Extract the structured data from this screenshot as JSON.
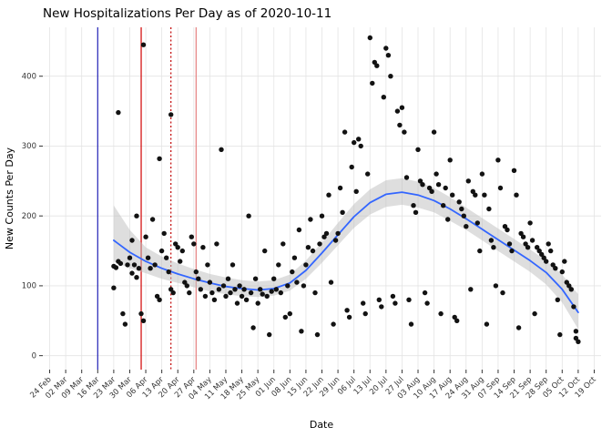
{
  "chart_data": {
    "type": "scatter",
    "title": "New Hospitalizations Per Day as of 2020-10-11",
    "xlabel": "Date",
    "ylabel": "New Counts Per Day",
    "x_tick_labels": [
      "24 Feb",
      "02 Mar",
      "09 Mar",
      "16 Mar",
      "23 Mar",
      "30 Mar",
      "06 Apr",
      "13 Apr",
      "20 Apr",
      "27 Apr",
      "04 May",
      "11 May",
      "18 May",
      "25 May",
      "01 Jun",
      "08 Jun",
      "15 Jun",
      "22 Jun",
      "29 Jun",
      "06 Jul",
      "13 Jul",
      "20 Jul",
      "27 Jul",
      "03 Aug",
      "10 Aug",
      "17 Aug",
      "24 Aug",
      "31 Aug",
      "07 Sep",
      "14 Sep",
      "21 Sep",
      "28 Sep",
      "05 Oct",
      "12 Oct",
      "19 Oct"
    ],
    "x_start_date": "2020-02-24",
    "x_tick_step_days": 7,
    "y_ticks": [
      0,
      100,
      200,
      300,
      400
    ],
    "ylim": [
      -20,
      470
    ],
    "grid": "on",
    "legend": "none",
    "colors": {
      "point": "#121212",
      "smooth_line": "#3366FF",
      "ribbon": "#BEBEBE",
      "grid": "#E4E4E4",
      "axis_text": "#333333",
      "title": "#000000"
    },
    "vlines": [
      {
        "date": "2020-03-16",
        "color": "#2222B8",
        "style": "solid"
      },
      {
        "date": "2020-04-04",
        "color": "#D10000",
        "style": "solid"
      },
      {
        "date": "2020-04-17",
        "color": "#C00000",
        "style": "dotted"
      },
      {
        "date": "2020-04-28",
        "color": "#E57F7F",
        "style": "solid"
      }
    ],
    "smooth": [
      [
        "2020-03-23",
        165,
        135,
        215
      ],
      [
        "2020-03-30",
        148,
        125,
        180
      ],
      [
        "2020-04-06",
        135,
        118,
        155
      ],
      [
        "2020-04-13",
        125,
        110,
        142
      ],
      [
        "2020-04-20",
        117,
        104,
        132
      ],
      [
        "2020-04-27",
        110,
        98,
        124
      ],
      [
        "2020-05-04",
        104,
        92,
        117
      ],
      [
        "2020-05-11",
        99,
        88,
        112
      ],
      [
        "2020-05-18",
        96,
        85,
        108
      ],
      [
        "2020-05-25",
        94,
        84,
        106
      ],
      [
        "2020-06-01",
        96,
        86,
        108
      ],
      [
        "2020-06-08",
        104,
        93,
        116
      ],
      [
        "2020-06-15",
        122,
        110,
        136
      ],
      [
        "2020-06-22",
        147,
        133,
        162
      ],
      [
        "2020-06-29",
        173,
        158,
        190
      ],
      [
        "2020-07-06",
        199,
        183,
        217
      ],
      [
        "2020-07-13",
        219,
        202,
        238
      ],
      [
        "2020-07-20",
        231,
        213,
        251
      ],
      [
        "2020-07-27",
        234,
        216,
        254
      ],
      [
        "2020-08-03",
        230,
        212,
        249
      ],
      [
        "2020-08-10",
        222,
        205,
        240
      ],
      [
        "2020-08-17",
        210,
        193,
        227
      ],
      [
        "2020-08-24",
        196,
        180,
        212
      ],
      [
        "2020-08-31",
        181,
        165,
        197
      ],
      [
        "2020-09-07",
        166,
        150,
        182
      ],
      [
        "2020-09-14",
        151,
        135,
        167
      ],
      [
        "2020-09-21",
        136,
        120,
        152
      ],
      [
        "2020-09-28",
        119,
        102,
        136
      ],
      [
        "2020-10-05",
        95,
        76,
        116
      ],
      [
        "2020-10-12",
        62,
        38,
        88
      ]
    ],
    "points": [
      [
        "2020-03-23",
        128
      ],
      [
        "2020-03-23",
        97
      ],
      [
        "2020-03-24",
        126
      ],
      [
        "2020-03-25",
        348
      ],
      [
        "2020-03-25",
        135
      ],
      [
        "2020-03-26",
        132
      ],
      [
        "2020-03-27",
        60
      ],
      [
        "2020-03-28",
        45
      ],
      [
        "2020-03-29",
        130
      ],
      [
        "2020-03-30",
        140
      ],
      [
        "2020-03-31",
        118
      ],
      [
        "2020-03-31",
        165
      ],
      [
        "2020-04-01",
        130
      ],
      [
        "2020-04-02",
        200
      ],
      [
        "2020-04-02",
        112
      ],
      [
        "2020-04-03",
        125
      ],
      [
        "2020-04-04",
        60
      ],
      [
        "2020-04-05",
        445
      ],
      [
        "2020-04-05",
        50
      ],
      [
        "2020-04-06",
        170
      ],
      [
        "2020-04-07",
        140
      ],
      [
        "2020-04-08",
        125
      ],
      [
        "2020-04-09",
        195
      ],
      [
        "2020-04-10",
        130
      ],
      [
        "2020-04-11",
        85
      ],
      [
        "2020-04-12",
        282
      ],
      [
        "2020-04-12",
        80
      ],
      [
        "2020-04-13",
        150
      ],
      [
        "2020-04-14",
        175
      ],
      [
        "2020-04-15",
        140
      ],
      [
        "2020-04-16",
        120
      ],
      [
        "2020-04-17",
        345
      ],
      [
        "2020-04-17",
        95
      ],
      [
        "2020-04-18",
        90
      ],
      [
        "2020-04-19",
        160
      ],
      [
        "2020-04-20",
        155
      ],
      [
        "2020-04-21",
        135
      ],
      [
        "2020-04-22",
        150
      ],
      [
        "2020-04-23",
        105
      ],
      [
        "2020-04-24",
        100
      ],
      [
        "2020-04-25",
        90
      ],
      [
        "2020-04-26",
        170
      ],
      [
        "2020-04-27",
        160
      ],
      [
        "2020-04-28",
        120
      ],
      [
        "2020-04-29",
        110
      ],
      [
        "2020-04-30",
        95
      ],
      [
        "2020-05-01",
        155
      ],
      [
        "2020-05-02",
        85
      ],
      [
        "2020-05-03",
        130
      ],
      [
        "2020-05-04",
        105
      ],
      [
        "2020-05-05",
        90
      ],
      [
        "2020-05-06",
        80
      ],
      [
        "2020-05-07",
        160
      ],
      [
        "2020-05-08",
        95
      ],
      [
        "2020-05-09",
        295
      ],
      [
        "2020-05-10",
        100
      ],
      [
        "2020-05-11",
        85
      ],
      [
        "2020-05-12",
        110
      ],
      [
        "2020-05-13",
        90
      ],
      [
        "2020-05-14",
        130
      ],
      [
        "2020-05-15",
        95
      ],
      [
        "2020-05-16",
        75
      ],
      [
        "2020-05-17",
        100
      ],
      [
        "2020-05-18",
        85
      ],
      [
        "2020-05-19",
        95
      ],
      [
        "2020-05-20",
        80
      ],
      [
        "2020-05-21",
        200
      ],
      [
        "2020-05-22",
        90
      ],
      [
        "2020-05-23",
        40
      ],
      [
        "2020-05-24",
        110
      ],
      [
        "2020-05-25",
        75
      ],
      [
        "2020-05-26",
        95
      ],
      [
        "2020-05-27",
        88
      ],
      [
        "2020-05-28",
        150
      ],
      [
        "2020-05-29",
        85
      ],
      [
        "2020-05-30",
        30
      ],
      [
        "2020-05-31",
        92
      ],
      [
        "2020-06-01",
        110
      ],
      [
        "2020-06-02",
        95
      ],
      [
        "2020-06-03",
        130
      ],
      [
        "2020-06-04",
        90
      ],
      [
        "2020-06-05",
        160
      ],
      [
        "2020-06-06",
        55
      ],
      [
        "2020-06-07",
        100
      ],
      [
        "2020-06-08",
        60
      ],
      [
        "2020-06-09",
        120
      ],
      [
        "2020-06-10",
        140
      ],
      [
        "2020-06-11",
        105
      ],
      [
        "2020-06-12",
        180
      ],
      [
        "2020-06-13",
        35
      ],
      [
        "2020-06-14",
        100
      ],
      [
        "2020-06-15",
        130
      ],
      [
        "2020-06-16",
        155
      ],
      [
        "2020-06-17",
        195
      ],
      [
        "2020-06-18",
        150
      ],
      [
        "2020-06-19",
        90
      ],
      [
        "2020-06-20",
        30
      ],
      [
        "2020-06-21",
        160
      ],
      [
        "2020-06-22",
        200
      ],
      [
        "2020-06-23",
        170
      ],
      [
        "2020-06-24",
        175
      ],
      [
        "2020-06-25",
        230
      ],
      [
        "2020-06-26",
        105
      ],
      [
        "2020-06-27",
        45
      ],
      [
        "2020-06-28",
        165
      ],
      [
        "2020-06-29",
        175
      ],
      [
        "2020-06-30",
        240
      ],
      [
        "2020-07-01",
        205
      ],
      [
        "2020-07-02",
        320
      ],
      [
        "2020-07-03",
        65
      ],
      [
        "2020-07-04",
        55
      ],
      [
        "2020-07-05",
        270
      ],
      [
        "2020-07-06",
        305
      ],
      [
        "2020-07-07",
        235
      ],
      [
        "2020-07-08",
        310
      ],
      [
        "2020-07-09",
        300
      ],
      [
        "2020-07-10",
        75
      ],
      [
        "2020-07-11",
        60
      ],
      [
        "2020-07-12",
        260
      ],
      [
        "2020-07-13",
        455
      ],
      [
        "2020-07-14",
        390
      ],
      [
        "2020-07-15",
        420
      ],
      [
        "2020-07-16",
        415
      ],
      [
        "2020-07-17",
        80
      ],
      [
        "2020-07-18",
        70
      ],
      [
        "2020-07-19",
        370
      ],
      [
        "2020-07-20",
        440
      ],
      [
        "2020-07-21",
        430
      ],
      [
        "2020-07-22",
        400
      ],
      [
        "2020-07-23",
        85
      ],
      [
        "2020-07-24",
        75
      ],
      [
        "2020-07-25",
        350
      ],
      [
        "2020-07-26",
        330
      ],
      [
        "2020-07-27",
        355
      ],
      [
        "2020-07-28",
        320
      ],
      [
        "2020-07-29",
        255
      ],
      [
        "2020-07-30",
        80
      ],
      [
        "2020-07-31",
        45
      ],
      [
        "2020-08-01",
        215
      ],
      [
        "2020-08-02",
        205
      ],
      [
        "2020-08-03",
        295
      ],
      [
        "2020-08-04",
        250
      ],
      [
        "2020-08-05",
        245
      ],
      [
        "2020-08-06",
        90
      ],
      [
        "2020-08-07",
        75
      ],
      [
        "2020-08-08",
        240
      ],
      [
        "2020-08-09",
        235
      ],
      [
        "2020-08-10",
        320
      ],
      [
        "2020-08-11",
        260
      ],
      [
        "2020-08-12",
        245
      ],
      [
        "2020-08-13",
        60
      ],
      [
        "2020-08-14",
        215
      ],
      [
        "2020-08-15",
        240
      ],
      [
        "2020-08-16",
        195
      ],
      [
        "2020-08-17",
        280
      ],
      [
        "2020-08-18",
        230
      ],
      [
        "2020-08-19",
        55
      ],
      [
        "2020-08-20",
        50
      ],
      [
        "2020-08-21",
        220
      ],
      [
        "2020-08-22",
        210
      ],
      [
        "2020-08-23",
        200
      ],
      [
        "2020-08-24",
        185
      ],
      [
        "2020-08-25",
        250
      ],
      [
        "2020-08-26",
        95
      ],
      [
        "2020-08-27",
        235
      ],
      [
        "2020-08-28",
        230
      ],
      [
        "2020-08-29",
        190
      ],
      [
        "2020-08-30",
        150
      ],
      [
        "2020-08-31",
        260
      ],
      [
        "2020-09-01",
        230
      ],
      [
        "2020-09-02",
        45
      ],
      [
        "2020-09-03",
        210
      ],
      [
        "2020-09-04",
        165
      ],
      [
        "2020-09-05",
        155
      ],
      [
        "2020-09-06",
        100
      ],
      [
        "2020-09-07",
        280
      ],
      [
        "2020-09-08",
        240
      ],
      [
        "2020-09-09",
        90
      ],
      [
        "2020-09-10",
        185
      ],
      [
        "2020-09-11",
        180
      ],
      [
        "2020-09-12",
        160
      ],
      [
        "2020-09-13",
        150
      ],
      [
        "2020-09-14",
        265
      ],
      [
        "2020-09-15",
        230
      ],
      [
        "2020-09-16",
        40
      ],
      [
        "2020-09-17",
        175
      ],
      [
        "2020-09-18",
        170
      ],
      [
        "2020-09-19",
        160
      ],
      [
        "2020-09-20",
        155
      ],
      [
        "2020-09-21",
        190
      ],
      [
        "2020-09-22",
        165
      ],
      [
        "2020-09-23",
        60
      ],
      [
        "2020-09-24",
        155
      ],
      [
        "2020-09-25",
        150
      ],
      [
        "2020-09-26",
        145
      ],
      [
        "2020-09-27",
        140
      ],
      [
        "2020-09-28",
        135
      ],
      [
        "2020-09-29",
        160
      ],
      [
        "2020-09-30",
        150
      ],
      [
        "2020-10-01",
        130
      ],
      [
        "2020-10-02",
        125
      ],
      [
        "2020-10-03",
        80
      ],
      [
        "2020-10-04",
        30
      ],
      [
        "2020-10-05",
        120
      ],
      [
        "2020-10-06",
        135
      ],
      [
        "2020-10-07",
        105
      ],
      [
        "2020-10-08",
        100
      ],
      [
        "2020-10-09",
        95
      ],
      [
        "2020-10-10",
        70
      ],
      [
        "2020-10-11",
        35
      ],
      [
        "2020-10-11",
        25
      ],
      [
        "2020-10-12",
        20
      ]
    ]
  }
}
